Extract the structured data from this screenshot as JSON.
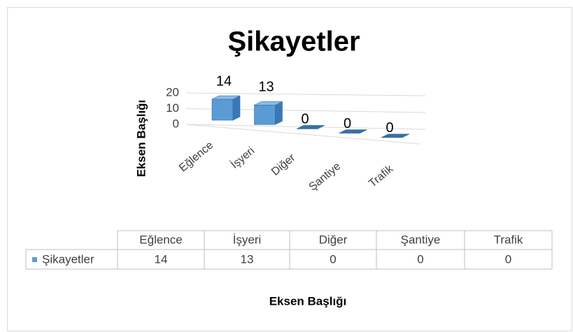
{
  "chart_data": {
    "type": "bar",
    "title": "Şikayetler",
    "categories": [
      "Eğlence",
      "İşyeri",
      "Diğer",
      "Şantiye",
      "Trafik"
    ],
    "series": [
      {
        "name": "Şikayetler",
        "color": "#5b9bd5",
        "values": [
          14,
          13,
          0,
          0,
          0
        ]
      }
    ],
    "ylim": [
      0,
      20
    ],
    "yticks": [
      0,
      10,
      20
    ],
    "grid": true,
    "y_axis_label": "Eksen Başlığı",
    "x_axis_label": "Eksen Başlığı"
  }
}
